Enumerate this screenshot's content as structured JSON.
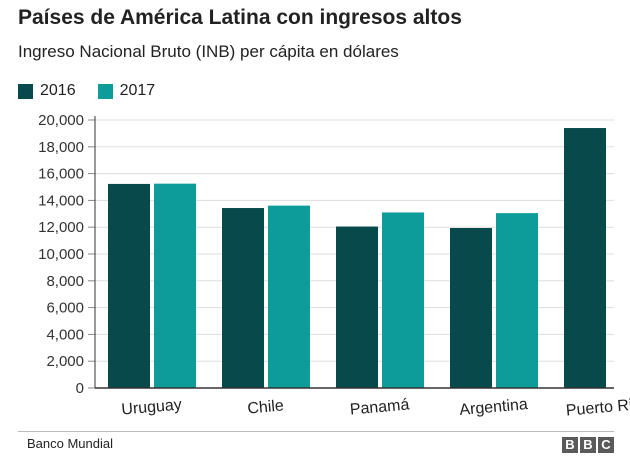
{
  "header": {
    "title": "Países de América Latina con ingresos altos",
    "subtitle": "Ingreso Nacional Bruto (INB) per cápita en dólares"
  },
  "footer": {
    "source": "Banco Mundial",
    "logo_letters": [
      "B",
      "B",
      "C"
    ]
  },
  "colors": {
    "series_2016": "#084a4b",
    "series_2017": "#0e9c9a",
    "grid": "#dddddd",
    "axis": "#333333"
  },
  "chart_data": {
    "type": "bar",
    "title": "Países de América Latina con ingresos altos",
    "subtitle": "Ingreso Nacional Bruto (INB) per cápita en dólares",
    "categories": [
      "Uruguay",
      "Chile",
      "Panamá",
      "Argentina",
      "Puerto Rico"
    ],
    "series": [
      {
        "name": "2016",
        "values": [
          15230,
          13430,
          12050,
          11940,
          19400
        ]
      },
      {
        "name": "2017",
        "values": [
          15250,
          13610,
          13100,
          13050,
          null
        ]
      }
    ],
    "ylim": [
      0,
      20000
    ],
    "yticks": [
      0,
      2000,
      4000,
      6000,
      8000,
      10000,
      12000,
      14000,
      16000,
      18000,
      20000
    ],
    "ytick_labels": [
      "0",
      "2,000",
      "4,000",
      "6,000",
      "8,000",
      "10,000",
      "12,000",
      "14,000",
      "16,000",
      "18,000",
      "20,000"
    ],
    "xlabel": "",
    "ylabel": "",
    "grid": true,
    "legend": "top-left"
  }
}
